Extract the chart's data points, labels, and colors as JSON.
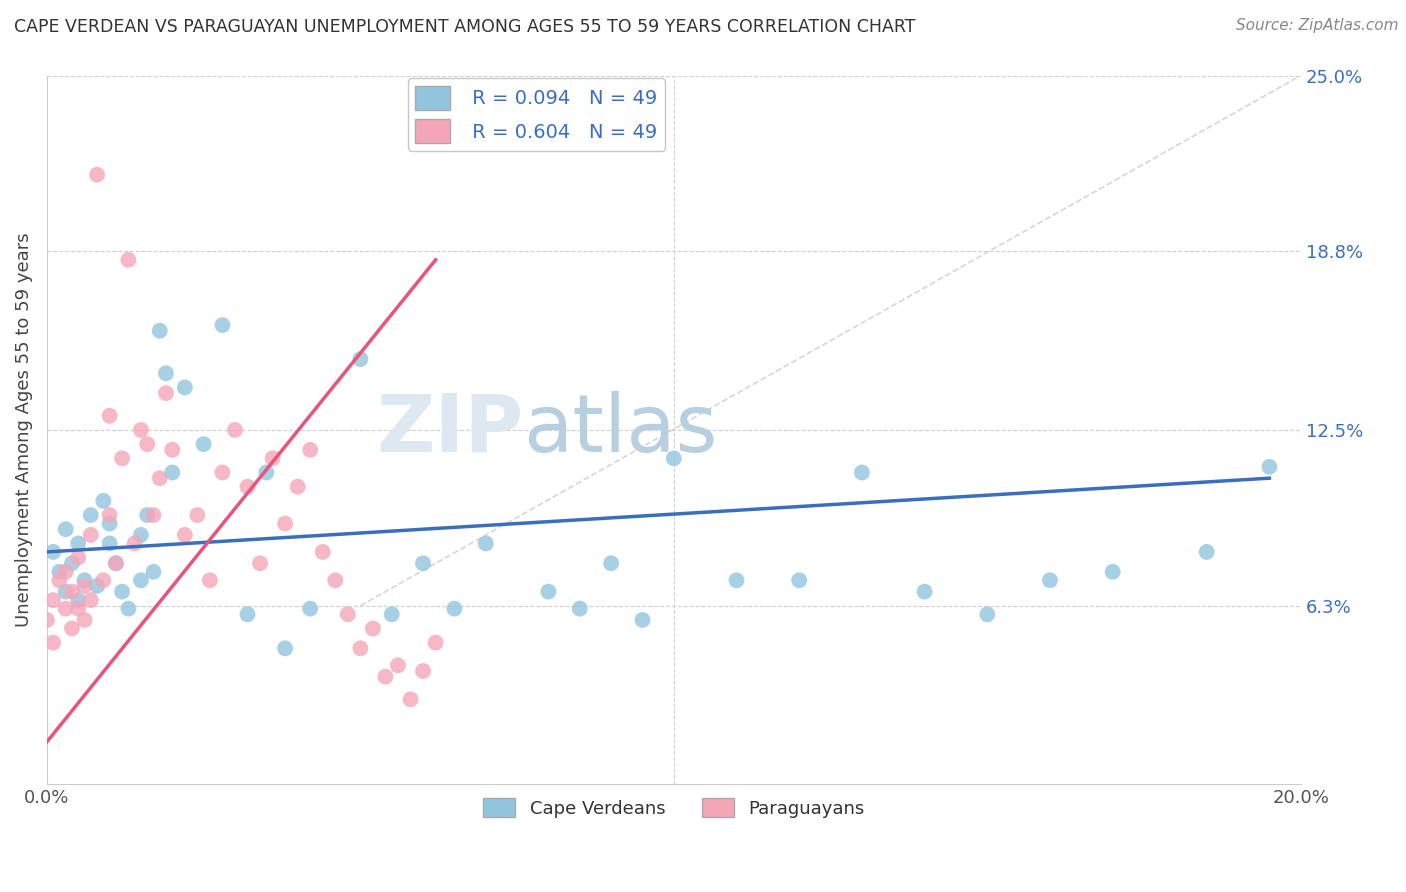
{
  "title": "CAPE VERDEAN VS PARAGUAYAN UNEMPLOYMENT AMONG AGES 55 TO 59 YEARS CORRELATION CHART",
  "source": "Source: ZipAtlas.com",
  "ylabel": "Unemployment Among Ages 55 to 59 years",
  "x_min": 0.0,
  "x_max": 0.2,
  "y_min": 0.0,
  "y_max": 0.25,
  "y_tick_labels_right": [
    "6.3%",
    "12.5%",
    "18.8%",
    "25.0%"
  ],
  "y_tick_vals_right": [
    0.063,
    0.125,
    0.188,
    0.25
  ],
  "blue_R": "0.094",
  "blue_N": "49",
  "pink_R": "0.604",
  "pink_N": "49",
  "blue_color": "#92c5de",
  "pink_color": "#f4a6b8",
  "blue_line_color": "#3a6fbf",
  "pink_line_color": "#e8547a",
  "legend_label_blue": "Cape Verdeans",
  "legend_label_pink": "Paraguayans",
  "background_color": "#ffffff",
  "grid_color": "#d0d0d0",
  "blue_scatter_x": [
    0.001,
    0.002,
    0.003,
    0.003,
    0.004,
    0.005,
    0.005,
    0.006,
    0.007,
    0.008,
    0.009,
    0.01,
    0.01,
    0.011,
    0.012,
    0.013,
    0.015,
    0.015,
    0.016,
    0.017,
    0.018,
    0.019,
    0.02,
    0.022,
    0.025,
    0.028,
    0.032,
    0.035,
    0.038,
    0.042,
    0.05,
    0.055,
    0.06,
    0.065,
    0.07,
    0.08,
    0.085,
    0.09,
    0.095,
    0.1,
    0.11,
    0.12,
    0.13,
    0.14,
    0.15,
    0.16,
    0.17,
    0.185,
    0.195
  ],
  "blue_scatter_y": [
    0.082,
    0.075,
    0.09,
    0.068,
    0.078,
    0.085,
    0.065,
    0.072,
    0.095,
    0.07,
    0.1,
    0.085,
    0.092,
    0.078,
    0.068,
    0.062,
    0.088,
    0.072,
    0.095,
    0.075,
    0.16,
    0.145,
    0.11,
    0.14,
    0.12,
    0.162,
    0.06,
    0.11,
    0.048,
    0.062,
    0.15,
    0.06,
    0.078,
    0.062,
    0.085,
    0.068,
    0.062,
    0.078,
    0.058,
    0.115,
    0.072,
    0.072,
    0.11,
    0.068,
    0.06,
    0.072,
    0.075,
    0.082,
    0.112
  ],
  "pink_scatter_x": [
    0.0,
    0.001,
    0.001,
    0.002,
    0.003,
    0.003,
    0.004,
    0.004,
    0.005,
    0.005,
    0.006,
    0.006,
    0.007,
    0.007,
    0.008,
    0.009,
    0.01,
    0.01,
    0.011,
    0.012,
    0.013,
    0.014,
    0.015,
    0.016,
    0.017,
    0.018,
    0.019,
    0.02,
    0.022,
    0.024,
    0.026,
    0.028,
    0.03,
    0.032,
    0.034,
    0.036,
    0.038,
    0.04,
    0.042,
    0.044,
    0.046,
    0.048,
    0.05,
    0.052,
    0.054,
    0.056,
    0.058,
    0.06,
    0.062
  ],
  "pink_scatter_y": [
    0.058,
    0.065,
    0.05,
    0.072,
    0.062,
    0.075,
    0.068,
    0.055,
    0.08,
    0.062,
    0.07,
    0.058,
    0.088,
    0.065,
    0.215,
    0.072,
    0.095,
    0.13,
    0.078,
    0.115,
    0.185,
    0.085,
    0.125,
    0.12,
    0.095,
    0.108,
    0.138,
    0.118,
    0.088,
    0.095,
    0.072,
    0.11,
    0.125,
    0.105,
    0.078,
    0.115,
    0.092,
    0.105,
    0.118,
    0.082,
    0.072,
    0.06,
    0.048,
    0.055,
    0.038,
    0.042,
    0.03,
    0.04,
    0.05
  ],
  "blue_line_x0": 0.0,
  "blue_line_x1": 0.195,
  "blue_line_y0": 0.082,
  "blue_line_y1": 0.108,
  "pink_line_x0": 0.0,
  "pink_line_x1": 0.062,
  "pink_line_y0": 0.015,
  "pink_line_y1": 0.185,
  "diag_color": "#cccccc"
}
